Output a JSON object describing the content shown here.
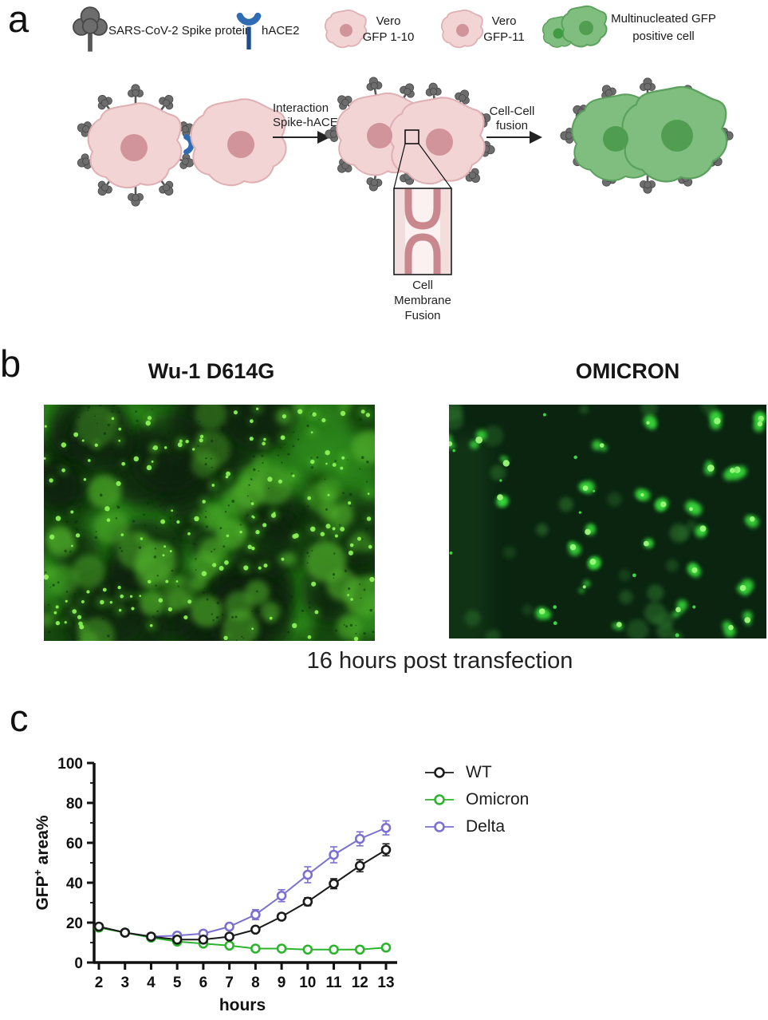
{
  "panel_a": {
    "label": "a",
    "legend": [
      {
        "icon": "spike-protein-icon",
        "lines": [
          "SARS-CoV-2 Spike protein"
        ]
      },
      {
        "icon": "hace2-icon",
        "lines": [
          "hACE2"
        ]
      },
      {
        "icon": "vero-gfp110-cell-icon",
        "lines": [
          "Vero",
          "GFP 1-10"
        ]
      },
      {
        "icon": "vero-gfp11-cell-icon",
        "lines": [
          "Vero",
          "GFP-11"
        ]
      },
      {
        "icon": "multinucleated-cell-icon",
        "lines": [
          "Multinucleated GFP",
          "positive cell"
        ]
      }
    ],
    "arrow1": {
      "lines": [
        "Interaction",
        "Spike-hACE2"
      ]
    },
    "arrow2": {
      "lines": [
        "Cell-Cell",
        "fusion"
      ]
    },
    "inset_label": {
      "lines": [
        "Cell",
        "Membrane",
        "Fusion"
      ]
    }
  },
  "panel_b": {
    "label": "b",
    "left_title": "Wu-1 D614G",
    "right_title": "OMICRON",
    "caption": "16 hours post transfection"
  },
  "panel_c": {
    "label": "c"
  },
  "chart_data": {
    "type": "line",
    "x": [
      2,
      3,
      4,
      5,
      6,
      7,
      8,
      9,
      10,
      11,
      12,
      13
    ],
    "xlabel": "hours",
    "ylabel": "GFP+ area%",
    "ylabel_parts": {
      "main": "GFP",
      "sup": "+",
      "rest": " area%"
    },
    "ylim": [
      0,
      100
    ],
    "yticks": [
      0,
      20,
      40,
      60,
      80,
      100
    ],
    "grid": false,
    "legend_position": "right",
    "series": [
      {
        "name": "WT",
        "color": "#1b1b1b",
        "values": [
          18,
          15,
          13,
          11.5,
          11.5,
          13,
          16.5,
          23,
          30.5,
          39.5,
          48.5,
          56.5
        ],
        "errors": [
          0.8,
          0.8,
          0.8,
          0.8,
          0.8,
          0.8,
          1.2,
          1.5,
          2,
          2.5,
          3,
          3
        ]
      },
      {
        "name": "Omicron",
        "color": "#2cb52c",
        "values": [
          17.5,
          15,
          12.5,
          10.5,
          9.5,
          8.5,
          7,
          7,
          6.5,
          6.5,
          6.5,
          7.5
        ],
        "errors": [
          0.8,
          0.8,
          0.8,
          0.8,
          0.8,
          0.8,
          0.7,
          0.7,
          0.7,
          0.7,
          0.7,
          1
        ]
      },
      {
        "name": "Delta",
        "color": "#7b70d2",
        "values": [
          18,
          15,
          13,
          13.5,
          14.5,
          18,
          24,
          33.5,
          44,
          54,
          62,
          67.5
        ],
        "errors": [
          0.8,
          0.8,
          0.8,
          1,
          1,
          1.5,
          2.5,
          3,
          4,
          4,
          3.5,
          3.5
        ]
      }
    ]
  },
  "colors": {
    "spike_gray": "#6d6d6d",
    "hace2_blue": "#2f6cb4",
    "vero_pink_body": "#f2d4d5",
    "vero_pink_edge": "#dfb0b3",
    "vero_pink_nucleus": "#d0949a",
    "fused_green_body": "#7fbe7f",
    "fused_green_edge": "#5ca05d",
    "fused_green_nucleus": "#519e52"
  },
  "fluorescence": {
    "dense_bg": "#16470f",
    "dense_dark": "#07230a",
    "dense_mid": "#2f8c1d",
    "dense_light": "#4fae2c",
    "dense_bright": "#8bf256",
    "sparse_bg": "#0a2410",
    "sparse_dim": "#2a6e2c",
    "sparse_bright": "#37d93b",
    "sparse_core": "#9cf97a"
  }
}
